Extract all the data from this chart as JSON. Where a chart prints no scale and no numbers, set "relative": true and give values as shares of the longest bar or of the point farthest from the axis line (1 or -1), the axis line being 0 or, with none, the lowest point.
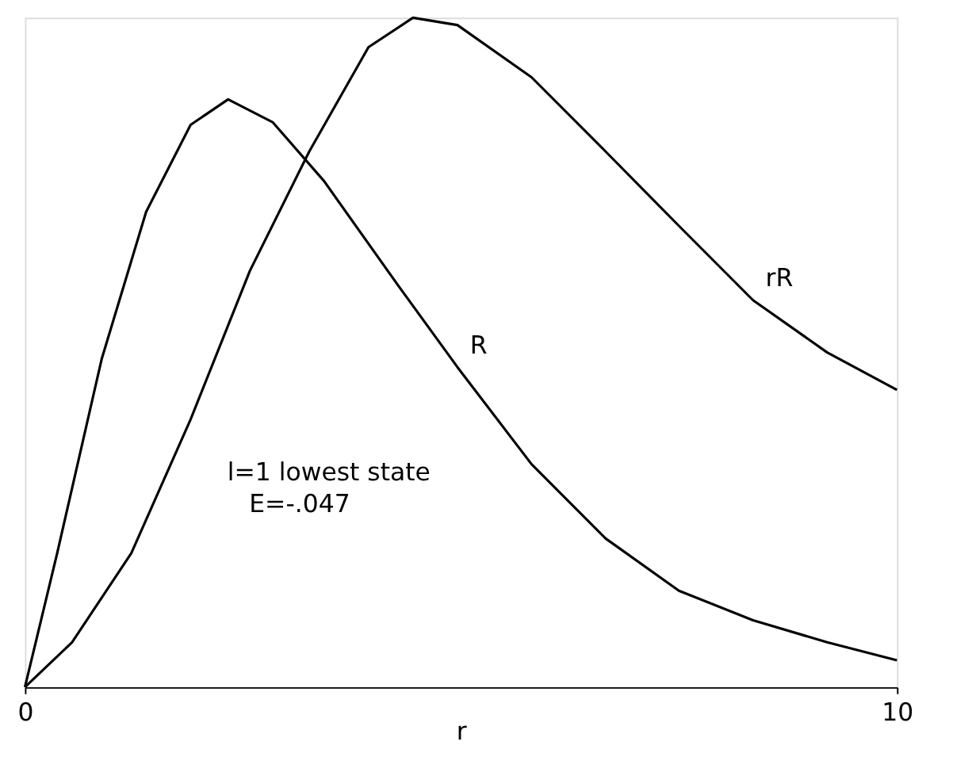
{
  "chart_data": {
    "type": "line",
    "xlabel": "r",
    "xlim": [
      0,
      10
    ],
    "xticks": [
      0,
      10
    ],
    "relative": true,
    "tick_labels": "x",
    "grid": false,
    "legend": false,
    "marker": "none",
    "line_style": "solid",
    "annotations": [
      "l=1 lowest state",
      "E=-.047"
    ],
    "series": [
      {
        "name": "R",
        "color": "#000000",
        "x": [
          0,
          0.37,
          0.88,
          1.39,
          1.9,
          2.33,
          2.84,
          3.43,
          4.28,
          4.96,
          5.81,
          6.66,
          7.5,
          8.35,
          9.2,
          10.0
        ],
        "values": [
          0,
          0.2,
          0.49,
          0.71,
          0.84,
          0.878,
          0.844,
          0.756,
          0.6,
          0.478,
          0.333,
          0.222,
          0.144,
          0.1,
          0.067,
          0.04
        ]
      },
      {
        "name": "rR",
        "color": "#000000",
        "x": [
          0,
          0.54,
          1.22,
          1.9,
          2.58,
          3.26,
          3.94,
          4.45,
          4.96,
          5.81,
          6.66,
          7.5,
          8.35,
          9.2,
          10.0
        ],
        "values": [
          0,
          0.067,
          0.2,
          0.4,
          0.622,
          0.8,
          0.956,
          1.0,
          0.989,
          0.911,
          0.8,
          0.689,
          0.578,
          0.5,
          0.444
        ]
      }
    ]
  }
}
